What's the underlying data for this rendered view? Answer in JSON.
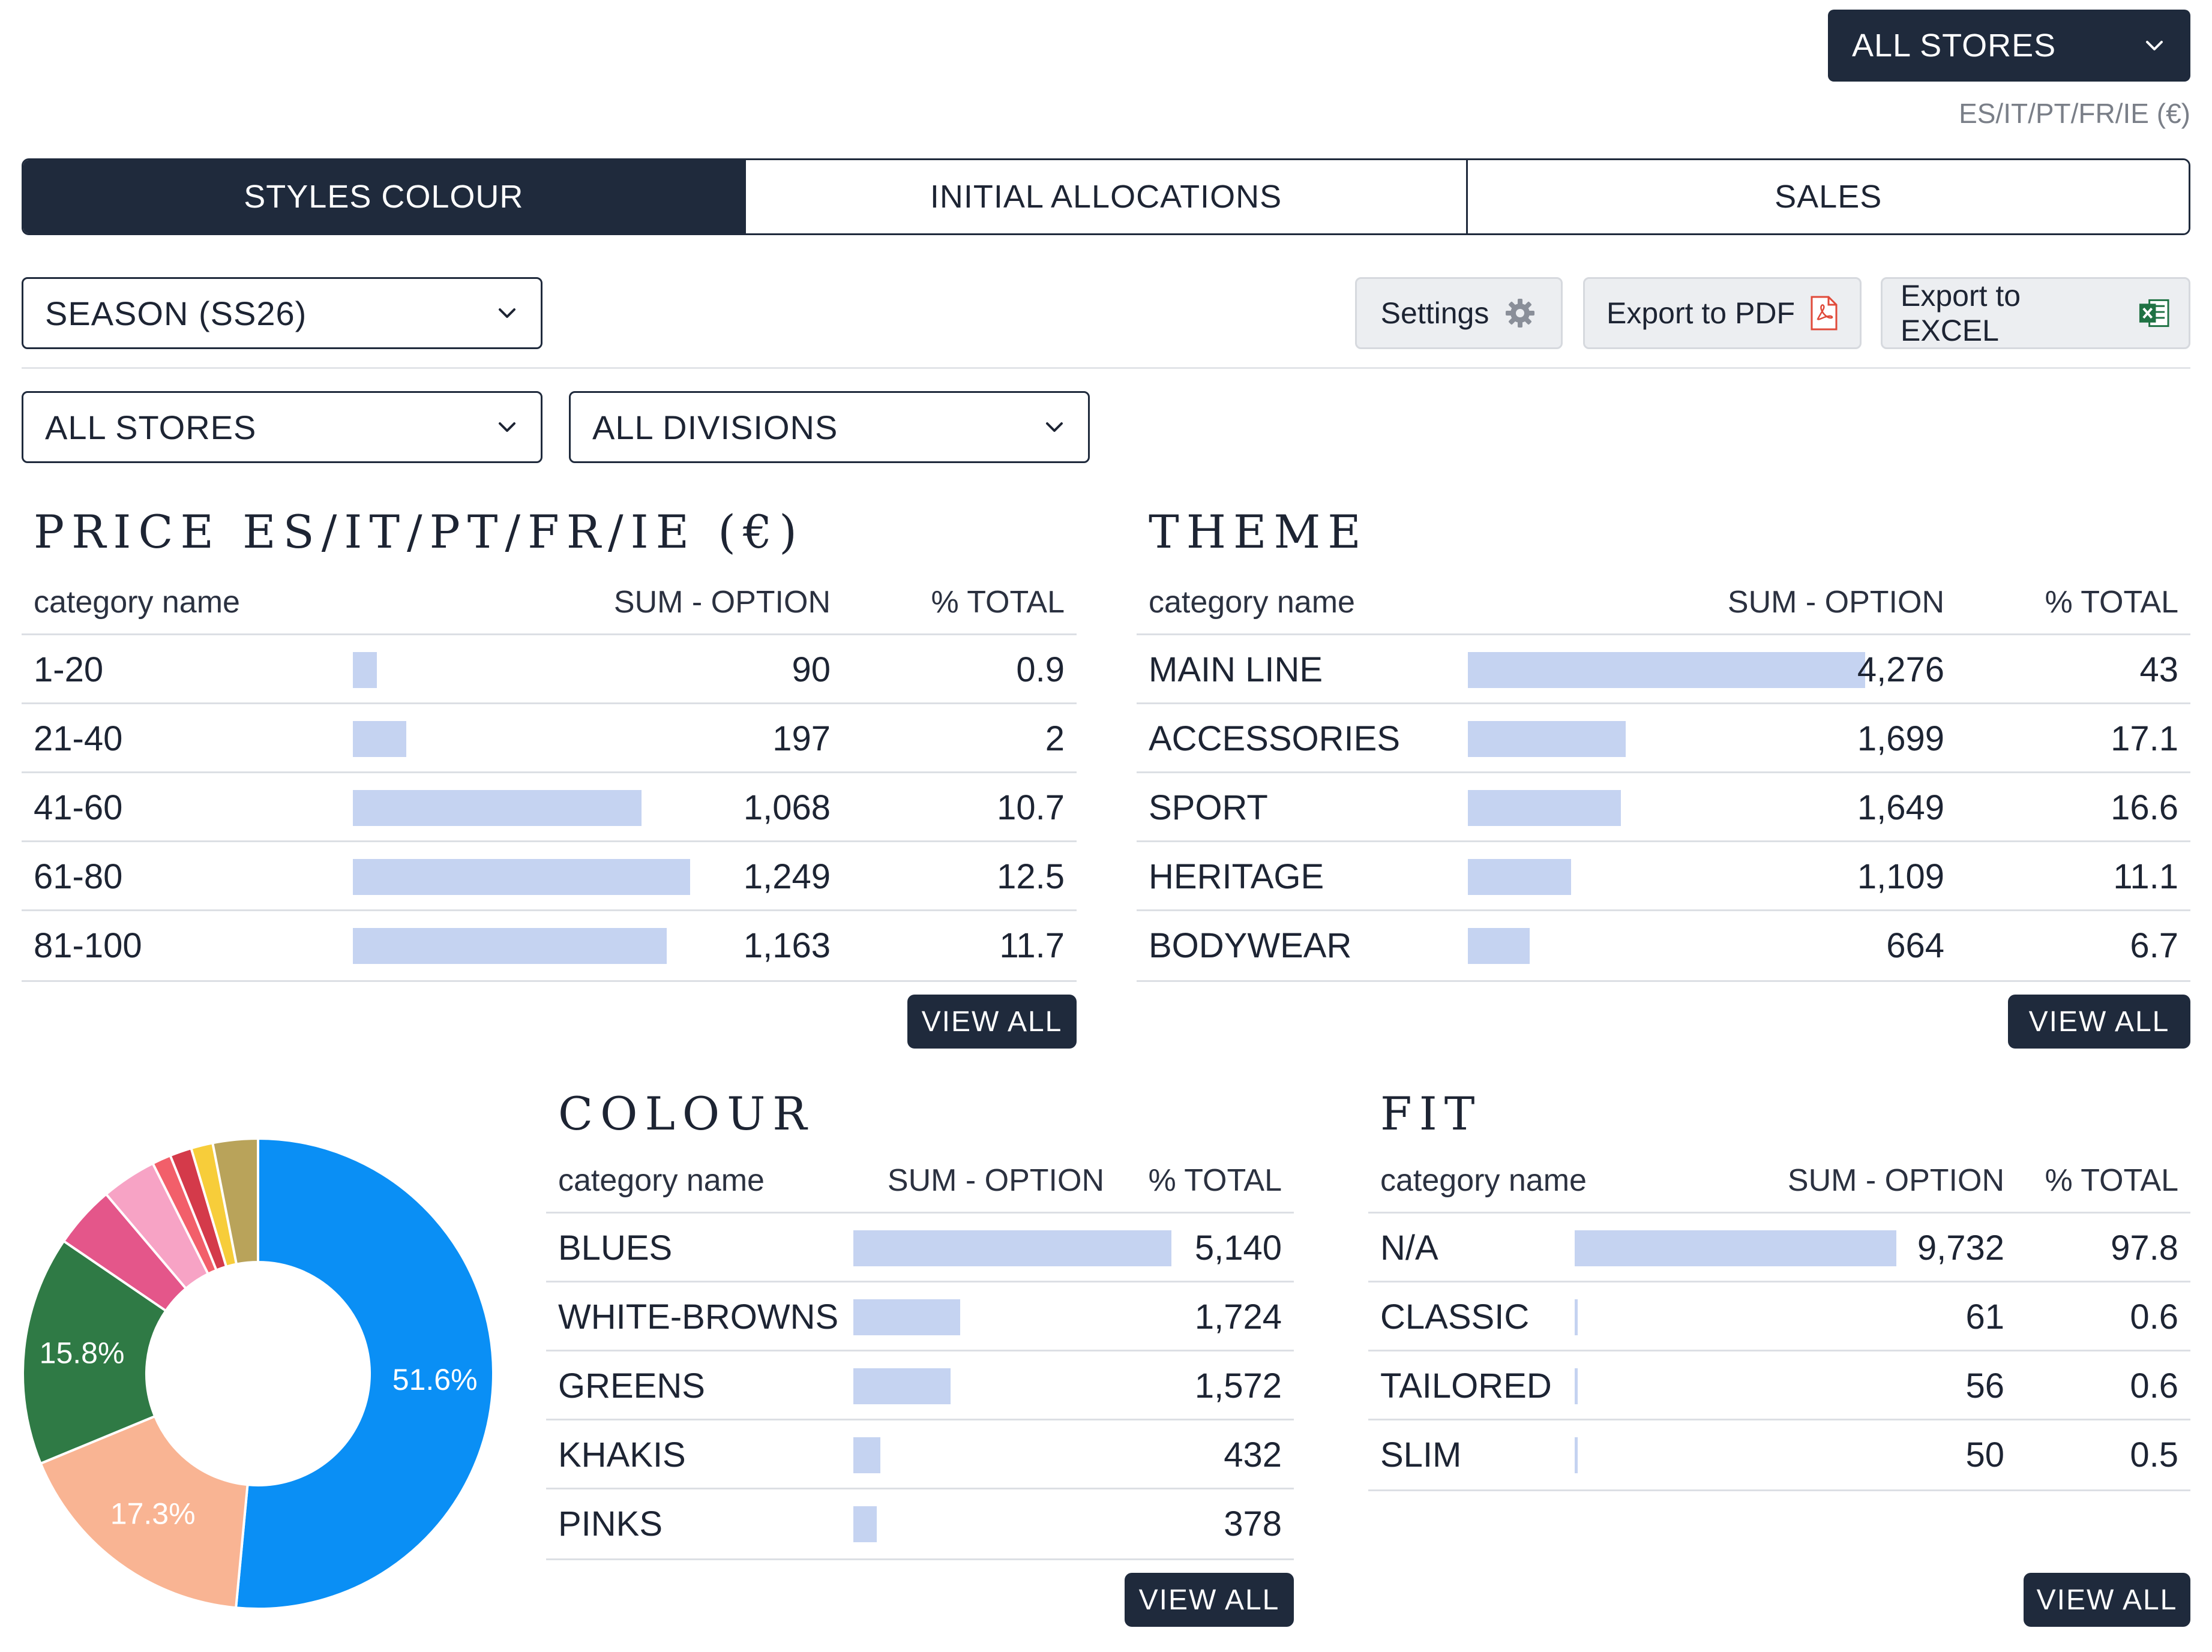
{
  "header": {
    "store_select": "ALL STORES",
    "region": "ES/IT/PT/FR/IE (€)"
  },
  "tabs": [
    {
      "label": "STYLES COLOUR",
      "active": true
    },
    {
      "label": "INITIAL ALLOCATIONS",
      "active": false
    },
    {
      "label": "SALES",
      "active": false
    }
  ],
  "filters": {
    "season": "SEASON (SS26)",
    "stores": "ALL STORES",
    "divisions": "ALL DIVISIONS"
  },
  "actions": {
    "settings": "Settings",
    "export_pdf": "Export to PDF",
    "export_excel": "Export to EXCEL"
  },
  "columns": {
    "name": "category name",
    "sum": "SUM - OPTION",
    "pct": "% TOTAL"
  },
  "view_all": "VIEW ALL",
  "price": {
    "title": "PRICE ES/IT/PT/FR/IE (€)",
    "rows": [
      {
        "name": "1-20",
        "sum": "90",
        "pct": "0.9",
        "value": 90
      },
      {
        "name": "21-40",
        "sum": "197",
        "pct": "2",
        "value": 197
      },
      {
        "name": "41-60",
        "sum": "1,068",
        "pct": "10.7",
        "value": 1068
      },
      {
        "name": "61-80",
        "sum": "1,249",
        "pct": "12.5",
        "value": 1249
      },
      {
        "name": "81-100",
        "sum": "1,163",
        "pct": "11.7",
        "value": 1163
      }
    ]
  },
  "theme": {
    "title": "THEME",
    "rows": [
      {
        "name": "MAIN LINE",
        "sum": "4,276",
        "pct": "43",
        "value": 4276
      },
      {
        "name": "ACCESSORIES",
        "sum": "1,699",
        "pct": "17.1",
        "value": 1699
      },
      {
        "name": "SPORT",
        "sum": "1,649",
        "pct": "16.6",
        "value": 1649
      },
      {
        "name": "HERITAGE",
        "sum": "1,109",
        "pct": "11.1",
        "value": 1109
      },
      {
        "name": "BODYWEAR",
        "sum": "664",
        "pct": "6.7",
        "value": 664
      }
    ]
  },
  "colour": {
    "title": "COLOUR",
    "rows": [
      {
        "name": "BLUES",
        "sum": "5,140",
        "value": 5140
      },
      {
        "name": "WHITE-BROWNS",
        "sum": "1,724",
        "value": 1724
      },
      {
        "name": "GREENS",
        "sum": "1,572",
        "value": 1572
      },
      {
        "name": "KHAKIS",
        "sum": "432",
        "value": 432
      },
      {
        "name": "PINKS",
        "sum": "378",
        "value": 378
      }
    ]
  },
  "fit": {
    "title": "FIT",
    "rows": [
      {
        "name": "N/A",
        "sum": "9,732",
        "pct": "97.8",
        "value": 9732
      },
      {
        "name": "CLASSIC",
        "sum": "61",
        "pct": "0.6",
        "value": 61
      },
      {
        "name": "TAILORED",
        "sum": "56",
        "pct": "0.6",
        "value": 56
      },
      {
        "name": "SLIM",
        "sum": "50",
        "pct": "0.5",
        "value": 50
      }
    ]
  },
  "chart_data": {
    "type": "pie",
    "title": "",
    "slices": [
      {
        "value": 51.6,
        "label": "51.6%",
        "color": "#0a8ff5"
      },
      {
        "value": 17.3,
        "label": "17.3%",
        "color": "#f9b493"
      },
      {
        "value": 15.8,
        "label": "15.8%",
        "color": "#2f7a45"
      },
      {
        "value": 4.3,
        "label": "",
        "color": "#e4568a"
      },
      {
        "value": 3.8,
        "label": "",
        "color": "#f7a3c5"
      },
      {
        "value": 1.3,
        "label": "",
        "color": "#f25f6a"
      },
      {
        "value": 1.5,
        "label": "",
        "color": "#d43a4a"
      },
      {
        "value": 1.5,
        "label": "",
        "color": "#f7cd3a"
      },
      {
        "value": 3.1,
        "label": "",
        "color": "#b9a35a"
      }
    ]
  }
}
